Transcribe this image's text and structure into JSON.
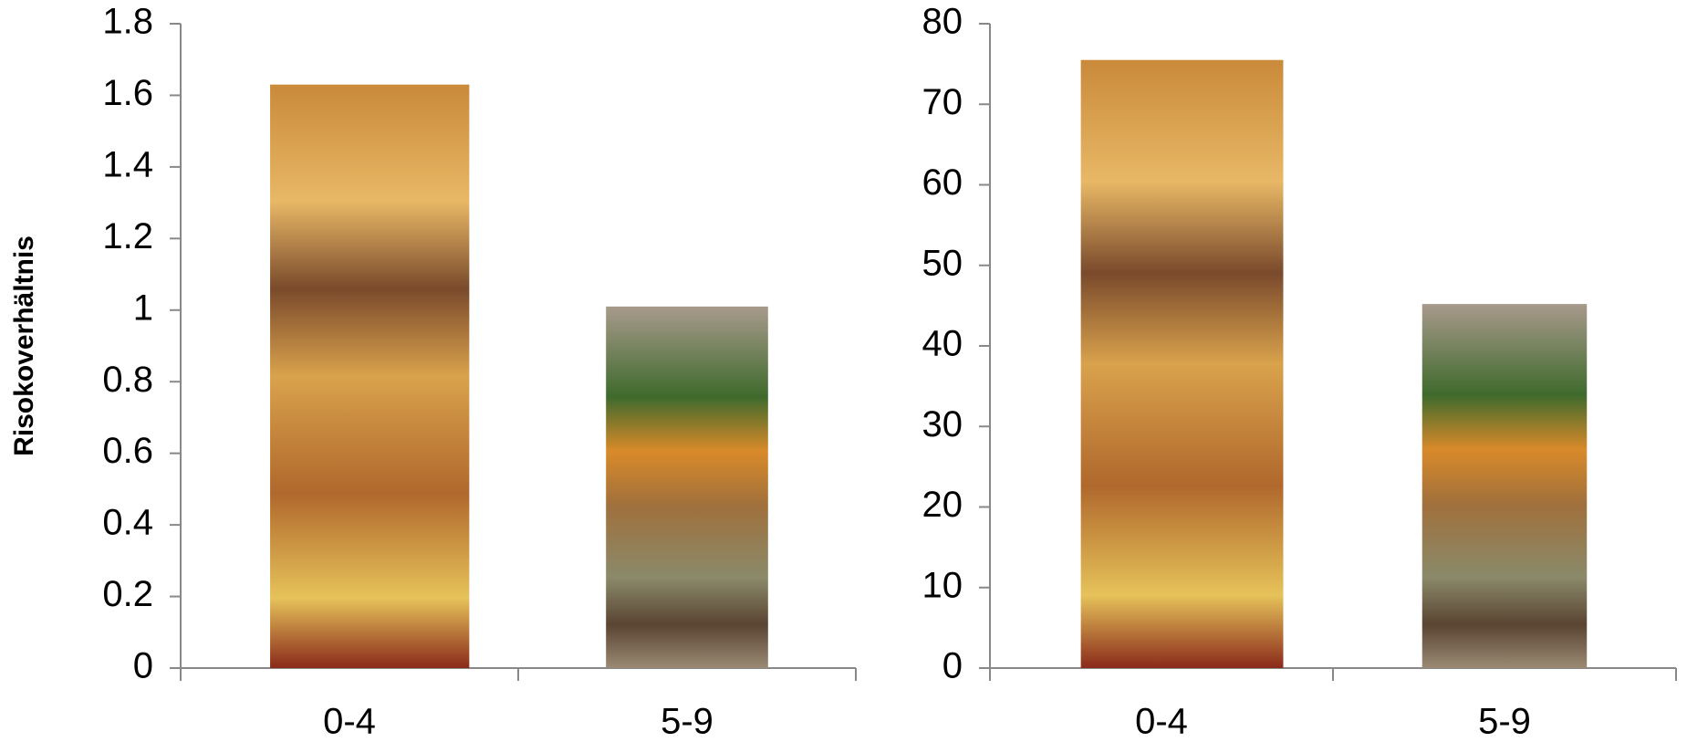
{
  "chart_data": [
    {
      "type": "bar",
      "y_label": "Risokoverhältnis",
      "categories": [
        "0-4",
        "5-9"
      ],
      "values": [
        1.63,
        1.01
      ],
      "ylim": [
        0,
        1.8
      ],
      "yticks": [
        0,
        0.2,
        0.4,
        0.6,
        0.8,
        1,
        1.2,
        1.4,
        1.6,
        1.8
      ]
    },
    {
      "type": "bar",
      "categories": [
        "0-4",
        "5-9"
      ],
      "values": [
        75.5,
        45.2
      ],
      "ylim": [
        0,
        80
      ],
      "yticks": [
        0,
        10,
        20,
        30,
        40,
        50,
        60,
        70,
        80
      ]
    }
  ]
}
